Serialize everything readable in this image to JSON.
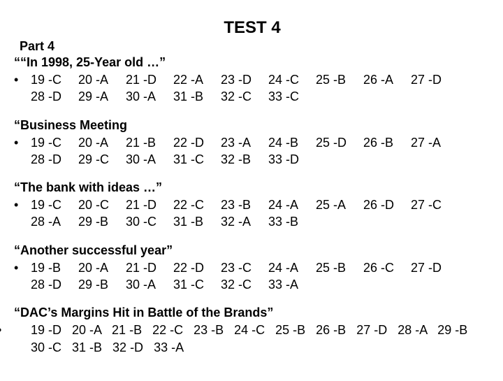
{
  "title": "TEST 4",
  "part": "Part 4",
  "sections": [
    {
      "header": "““In 1998, 25-Year old …”",
      "cells": [
        [
          "19 -C",
          "20 -A",
          "21 -D",
          "22 -A",
          "23 -D",
          "24 -C",
          "25 -B",
          "26 -A",
          "27 -D"
        ],
        [
          "28 -D",
          "29 -A",
          "30 -A",
          "31 -B",
          "32 -C",
          "33 -C",
          "",
          "",
          ""
        ]
      ]
    },
    {
      "header": "“Business Meeting",
      "cells": [
        [
          "19 -C",
          "20 -A",
          "21 -B",
          "22 -D",
          "23 -A",
          "24 -B",
          "25 -D",
          "26 -B",
          "27 -A"
        ],
        [
          "28 -D",
          "29 -C",
          "30 -A",
          "31 -C",
          "32 -B",
          "33 -D",
          "",
          "",
          ""
        ]
      ]
    },
    {
      "header": "“The bank with ideas …”",
      "cells": [
        [
          "19 -C",
          "20 -C",
          "21 -D",
          "22 -C",
          "23 -B",
          "24 -A",
          "25 -A",
          "26 -D",
          "27 -C"
        ],
        [
          "28 -A",
          "29 -B",
          "30 -C",
          "31 -B",
          "32 -A",
          "33 -B",
          "",
          "",
          ""
        ]
      ]
    },
    {
      "header": "“Another successful year”",
      "cells": [
        [
          "19 -B",
          "20 -A",
          "21 -D",
          "22 -D",
          "23 -C",
          "24 -A",
          "25 -B",
          "26 -C",
          "27 -D"
        ],
        [
          "28 -D",
          "29 -B",
          "30 -A",
          "31 -C",
          "32 -C",
          "33 -A",
          "",
          "",
          ""
        ]
      ]
    }
  ],
  "flow_section": {
    "header": "“DAC’s Margins Hit in Battle of the Brands”",
    "text": "19 -D   20 -A   21 -B   22 -C   23 -B   24 -C   25 -B   26 -B   27 -D   28 -A   29 -B   30 -C   31 -B   32 -D   33 -A"
  },
  "bullet": "•"
}
